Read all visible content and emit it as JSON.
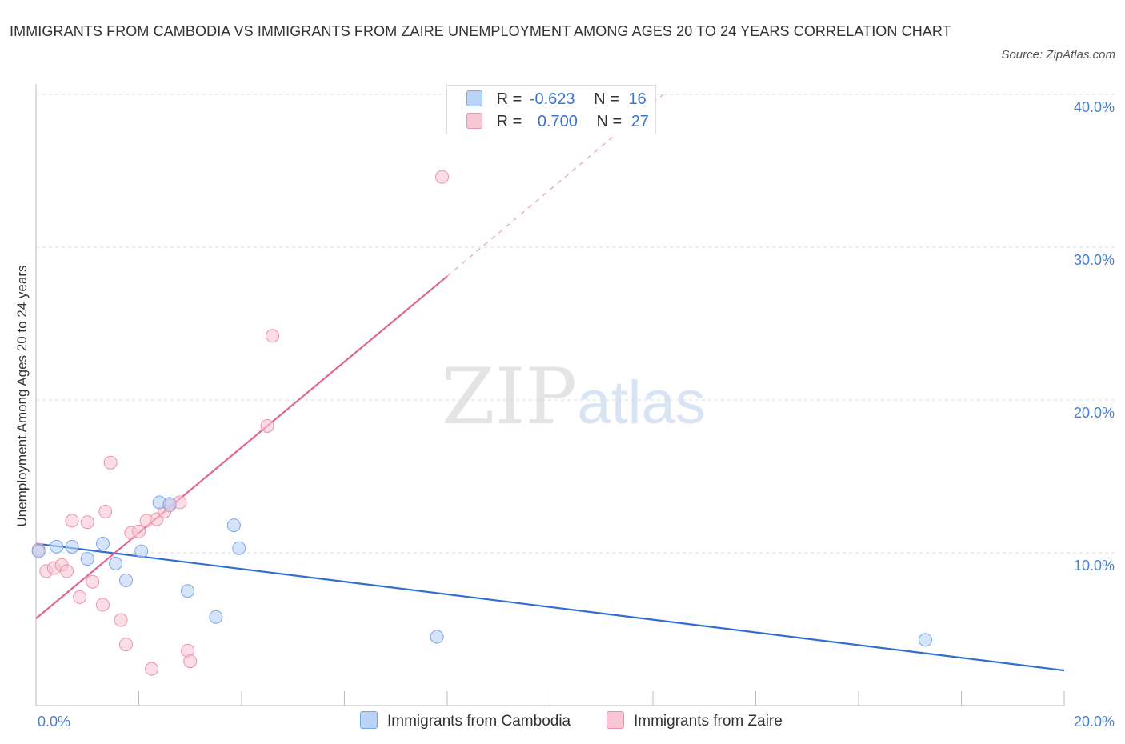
{
  "title": "IMMIGRANTS FROM CAMBODIA VS IMMIGRANTS FROM ZAIRE UNEMPLOYMENT AMONG AGES 20 TO 24 YEARS CORRELATION CHART",
  "source": "Source: ZipAtlas.com",
  "watermark": {
    "zip": "ZIP",
    "atlas": "atlas"
  },
  "colors": {
    "cambodia_fill": "#b9d2f5",
    "cambodia_stroke": "#7aa7e6",
    "cambodia_line": "#2f6fcf",
    "zaire_fill": "#f9c6d5",
    "zaire_stroke": "#ec93ae",
    "zaire_line": "#e3648e",
    "tick": "#4a7fd0",
    "grid": "#dddddd"
  },
  "legend": {
    "r_label": "R =",
    "n_label": "N =",
    "rows": [
      {
        "r": "-0.623",
        "n": "16"
      },
      {
        "r": "0.700",
        "n": "27"
      }
    ]
  },
  "chart_data": {
    "type": "scatter",
    "title": "IMMIGRANTS FROM CAMBODIA VS IMMIGRANTS FROM ZAIRE UNEMPLOYMENT AMONG AGES 20 TO 24 YEARS CORRELATION CHART",
    "xlabel": "",
    "ylabel": "Unemployment Among Ages 20 to 24 years",
    "xlim": [
      0,
      20
    ],
    "ylim": [
      0,
      40
    ],
    "x_tick_labels": [
      {
        "value": 0,
        "label": "0.0%"
      },
      {
        "value": 20,
        "label": "20.0%"
      }
    ],
    "y_tick_labels": [
      {
        "value": 10,
        "label": "10.0%"
      },
      {
        "value": 20,
        "label": "20.0%"
      },
      {
        "value": 30,
        "label": "30.0%"
      },
      {
        "value": 40,
        "label": "40.0%"
      }
    ],
    "grid": true,
    "series": [
      {
        "name": "Immigrants from Cambodia",
        "color": "#b9d2f5",
        "points": [
          [
            0.05,
            10.1
          ],
          [
            0.4,
            10.4
          ],
          [
            0.7,
            10.4
          ],
          [
            1.0,
            9.6
          ],
          [
            1.3,
            10.6
          ],
          [
            1.55,
            9.3
          ],
          [
            1.75,
            8.2
          ],
          [
            2.05,
            10.1
          ],
          [
            2.4,
            13.3
          ],
          [
            2.6,
            13.2
          ],
          [
            2.95,
            7.5
          ],
          [
            3.5,
            5.8
          ],
          [
            3.85,
            11.8
          ],
          [
            3.95,
            10.3
          ],
          [
            7.8,
            4.5
          ],
          [
            17.3,
            4.3
          ]
        ],
        "trend": {
          "x": [
            0,
            20
          ],
          "y": [
            10.6,
            2.3
          ]
        }
      },
      {
        "name": "Immigrants from Zaire",
        "color": "#f9c6d5",
        "points": [
          [
            0.05,
            10.2
          ],
          [
            0.2,
            8.8
          ],
          [
            0.35,
            9.0
          ],
          [
            0.5,
            9.2
          ],
          [
            0.6,
            8.8
          ],
          [
            0.7,
            12.1
          ],
          [
            0.85,
            7.1
          ],
          [
            1.0,
            12.0
          ],
          [
            1.1,
            8.1
          ],
          [
            1.3,
            6.6
          ],
          [
            1.35,
            12.7
          ],
          [
            1.45,
            15.9
          ],
          [
            1.65,
            5.6
          ],
          [
            1.75,
            4.0
          ],
          [
            1.85,
            11.3
          ],
          [
            2.0,
            11.4
          ],
          [
            2.15,
            12.1
          ],
          [
            2.25,
            2.4
          ],
          [
            2.35,
            12.2
          ],
          [
            2.5,
            12.7
          ],
          [
            2.6,
            13.1
          ],
          [
            2.8,
            13.3
          ],
          [
            2.95,
            3.6
          ],
          [
            3.0,
            2.9
          ],
          [
            4.5,
            18.3
          ],
          [
            4.6,
            24.2
          ],
          [
            7.9,
            34.6
          ]
        ],
        "trend": {
          "x": [
            0,
            8
          ],
          "y": [
            5.7,
            28.1
          ]
        },
        "trend_extension": {
          "x": [
            8,
            12.2
          ],
          "y": [
            28.1,
            40.0
          ]
        }
      }
    ]
  }
}
